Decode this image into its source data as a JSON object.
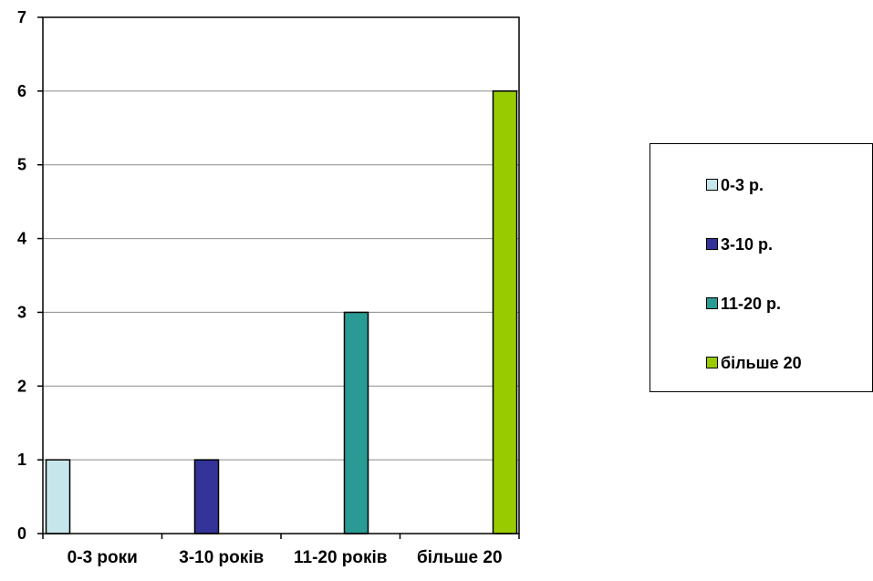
{
  "chart_data": {
    "type": "bar",
    "categories": [
      "0-3 роки",
      "3-10 років",
      "11-20 років",
      "більше 20"
    ],
    "series": [
      {
        "name": "0-3 р.",
        "color": "#C5E6EA",
        "values": [
          1,
          null,
          null,
          null
        ]
      },
      {
        "name": "3-10 р.",
        "color": "#333399",
        "values": [
          null,
          1,
          null,
          null
        ]
      },
      {
        "name": "11-20 р.",
        "color": "#2A9A94",
        "values": [
          null,
          null,
          3,
          null
        ]
      },
      {
        "name": "більше 20",
        "color": "#99CC00",
        "values": [
          null,
          null,
          null,
          6
        ]
      }
    ],
    "ylim": [
      0,
      7
    ],
    "yticks": [
      0,
      1,
      2,
      3,
      4,
      5,
      6,
      7
    ],
    "grid": true,
    "legend_position": "right"
  }
}
